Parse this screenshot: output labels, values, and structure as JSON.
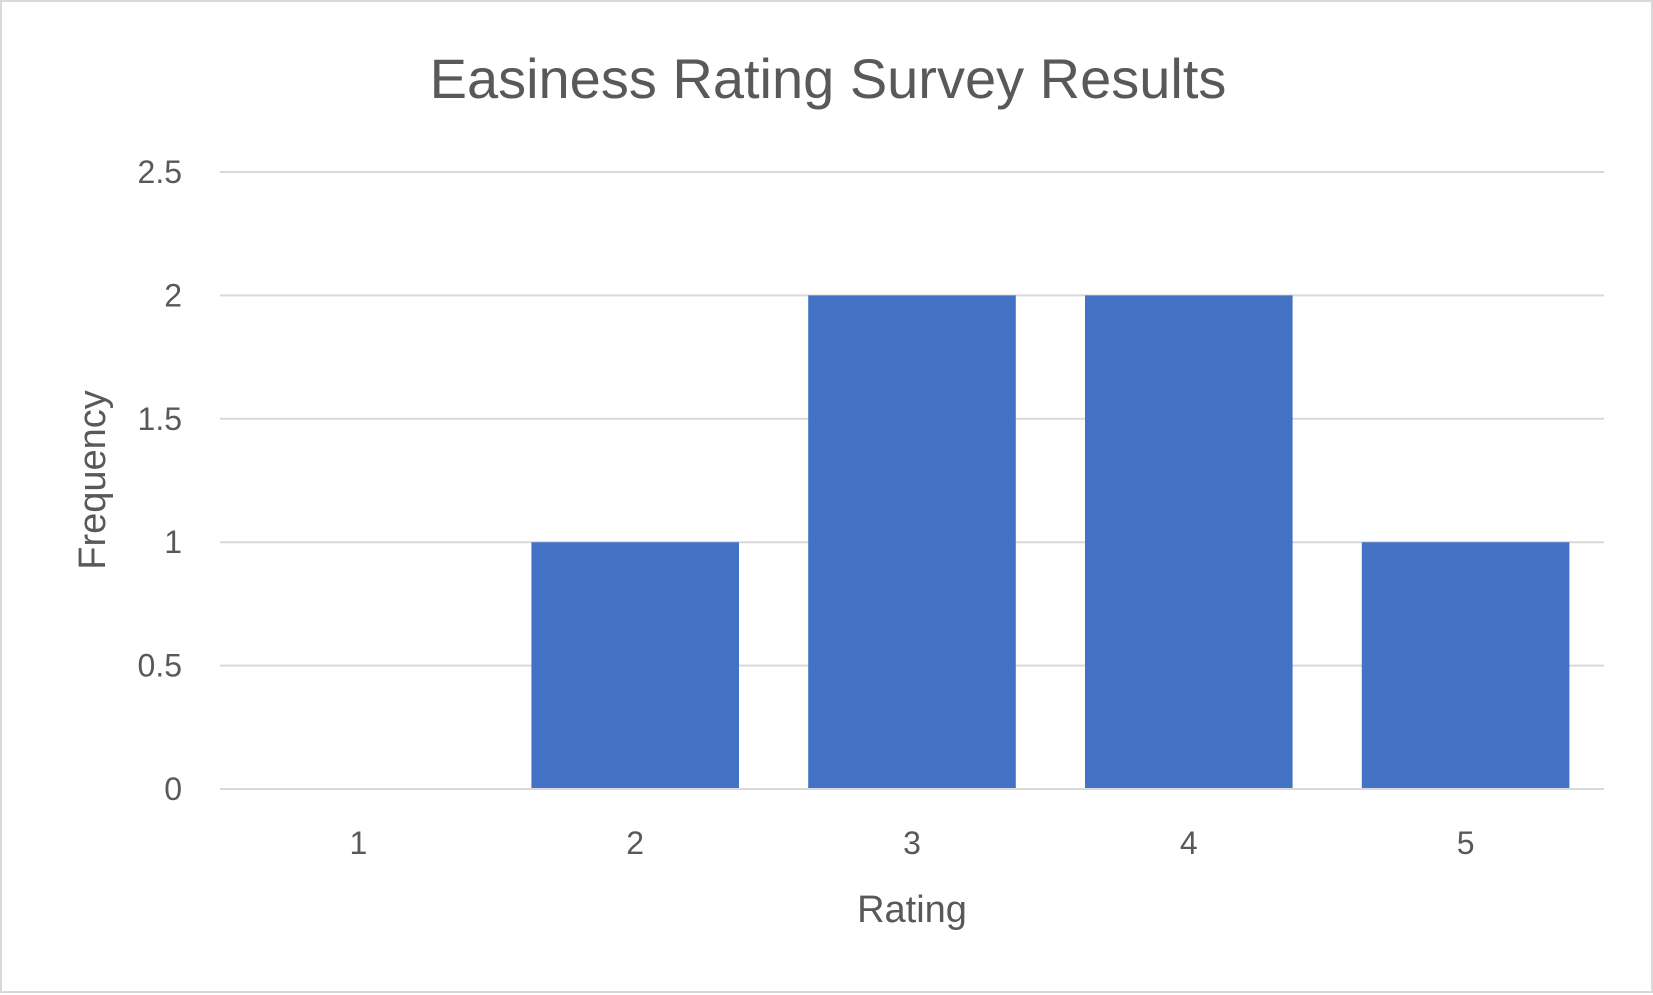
{
  "chart_data": {
    "type": "bar",
    "title": "Easiness Rating Survey Results",
    "xlabel": "Rating",
    "ylabel": "Frequency",
    "categories": [
      "1",
      "2",
      "3",
      "4",
      "5"
    ],
    "values": [
      0,
      1,
      2,
      2,
      1
    ],
    "ylim": [
      0,
      2.5
    ],
    "yticks": [
      "0",
      "0.5",
      "1",
      "1.5",
      "2",
      "2.5"
    ],
    "grid": true,
    "legend": "none",
    "bar_color": "#4472C4",
    "text_color": "#595959",
    "grid_color": "#D9D9D9"
  }
}
